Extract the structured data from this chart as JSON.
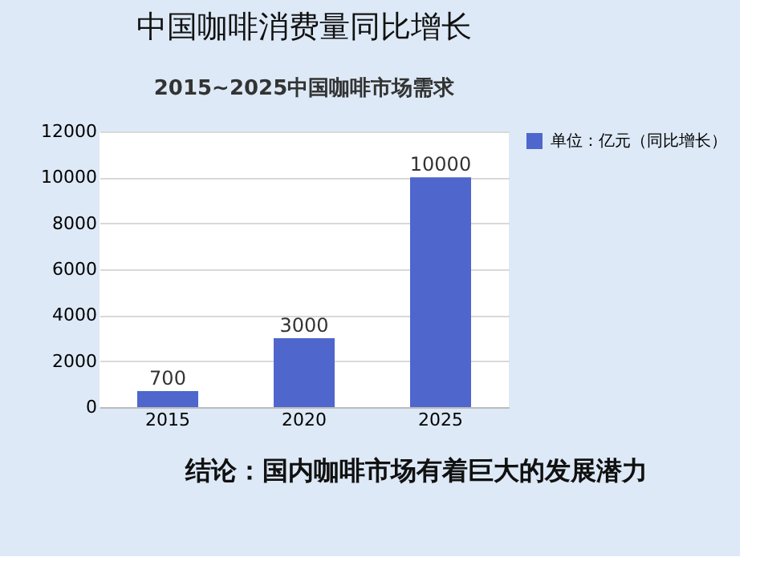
{
  "chart_data": {
    "type": "bar",
    "title": "中国咖啡消费量同比增长",
    "subtitle": "2015~2025中国咖啡市场需求",
    "categories": [
      "2015",
      "2020",
      "2025"
    ],
    "series": [
      {
        "name": "单位：亿元（同比增长）",
        "color": "#4f66cc",
        "values": [
          700,
          3000,
          10000
        ]
      }
    ],
    "ylim": [
      0,
      12000
    ],
    "yticks": [
      0,
      2000,
      4000,
      6000,
      8000,
      10000,
      12000
    ],
    "grid": "y",
    "legend": "right",
    "data_labels": true,
    "annotations": [
      "结论：国内咖啡市场有着巨大的发展潜力"
    ]
  }
}
